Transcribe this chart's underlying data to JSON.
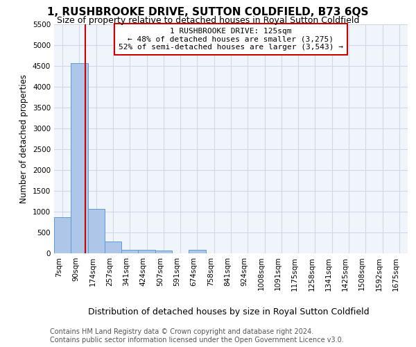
{
  "title": "1, RUSHBROOKE DRIVE, SUTTON COLDFIELD, B73 6QS",
  "subtitle": "Size of property relative to detached houses in Royal Sutton Coldfield",
  "xlabel": "Distribution of detached houses by size in Royal Sutton Coldfield",
  "ylabel": "Number of detached properties",
  "footer_line1": "Contains HM Land Registry data © Crown copyright and database right 2024.",
  "footer_line2": "Contains public sector information licensed under the Open Government Licence v3.0.",
  "bin_labels": [
    "7sqm",
    "90sqm",
    "174sqm",
    "257sqm",
    "341sqm",
    "424sqm",
    "507sqm",
    "591sqm",
    "674sqm",
    "758sqm",
    "841sqm",
    "924sqm",
    "1008sqm",
    "1091sqm",
    "1175sqm",
    "1258sqm",
    "1341sqm",
    "1425sqm",
    "1508sqm",
    "1592sqm",
    "1675sqm"
  ],
  "bar_heights": [
    870,
    4570,
    1060,
    290,
    90,
    90,
    75,
    0,
    80,
    0,
    0,
    0,
    0,
    0,
    0,
    0,
    0,
    0,
    0,
    0,
    0
  ],
  "bar_color": "#aec6e8",
  "bar_edge_color": "#5b9bd5",
  "red_line_x": 1.36,
  "annotation_text": "1 RUSHBROOKE DRIVE: 125sqm\n← 48% of detached houses are smaller (3,275)\n52% of semi-detached houses are larger (3,543) →",
  "annotation_box_color": "#ffffff",
  "annotation_box_edge": "#cc0000",
  "annotation_text_color": "#000000",
  "red_line_color": "#cc0000",
  "ylim": [
    0,
    5500
  ],
  "yticks": [
    0,
    500,
    1000,
    1500,
    2000,
    2500,
    3000,
    3500,
    4000,
    4500,
    5000,
    5500
  ],
  "grid_color": "#d0d8e8",
  "background_color": "#f0f4fb",
  "title_fontsize": 11,
  "subtitle_fontsize": 9,
  "xlabel_fontsize": 9,
  "ylabel_fontsize": 8.5,
  "tick_fontsize": 7.5,
  "annotation_fontsize": 8,
  "footer_fontsize": 7
}
